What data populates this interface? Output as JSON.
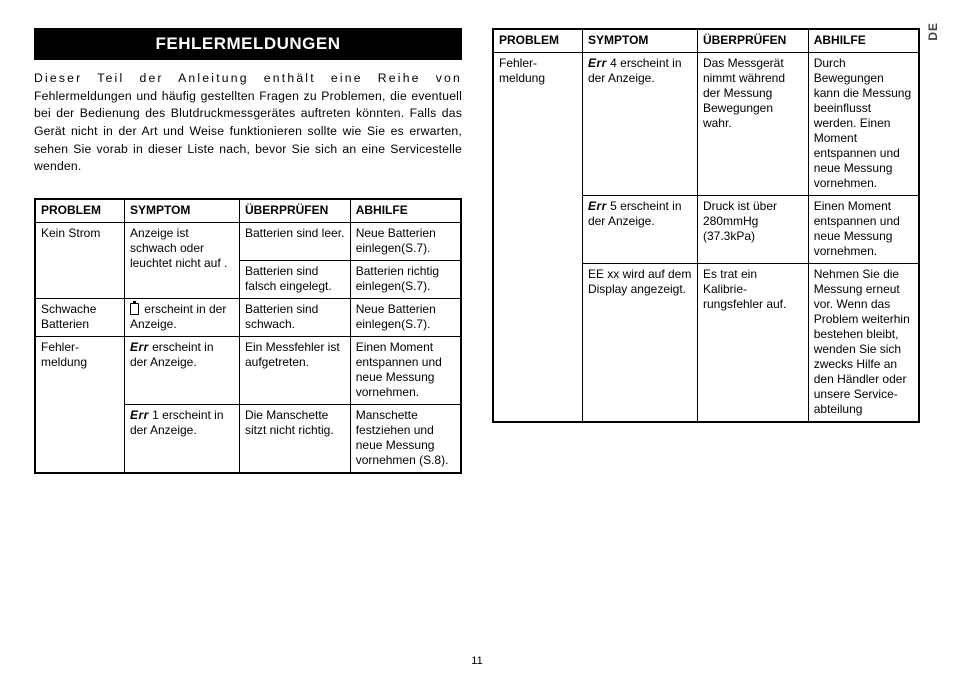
{
  "lang_tab": "DE",
  "page_number": "11",
  "heading": "FEHLERMELDUNGEN",
  "intro_line1": "Dieser Teil der Anleitung enthält eine Reihe von",
  "intro_rest": "Fehlermeldungen und häufig gestellten Fragen zu Problemen, die eventuell bei der Bedienung des Blutdruckmessgerätes auftreten könnten. Falls das Gerät nicht in der Art und Weise funktionieren sollte wie Sie es erwarten, sehen Sie vorab in dieser Liste nach, bevor Sie sich an eine Servicestelle wenden.",
  "headers": {
    "problem": "PROBLEM",
    "symptom": "SYMPTOM",
    "check": "ÜBERPRÜFEN",
    "fix": "ABHILFE"
  },
  "err_label": "Err",
  "left_table": {
    "r1": {
      "problem": "Kein Strom",
      "symptom": "Anzeige ist schwach oder leuchtet nicht auf .",
      "check": "Batterien sind leer.",
      "fix": "Neue Batterien einlegen(S.7).",
      "check2": "Batterien sind falsch eingelegt.",
      "fix2": "Batterien richtig einlegen(S.7)."
    },
    "r2": {
      "problem": "Schwache Batterien",
      "symptom_after": " erscheint in der Anzeige.",
      "check": "Batterien sind schwach.",
      "fix": "Neue Batterien einlegen(S.7)."
    },
    "r3": {
      "problem": "Fehler-\nmeldung",
      "symptom_after": " erscheint in der Anzeige.",
      "check": "Ein Messfehler ist aufgetreten.",
      "fix": "Einen Moment entspannen und neue Messung vornehmen.",
      "symptom2_after": " 1 erscheint in der Anzeige.",
      "check2": "Die Manschette sitzt nicht richtig.",
      "fix2": "Manschette festziehen und neue Messung vornehmen (S.8)."
    }
  },
  "right_table": {
    "r1": {
      "problem": "Fehler-\nmeldung",
      "symptom_after": " 4 erscheint in der Anzeige.",
      "check": "Das Messgerät nimmt während der Messung Bewegungen wahr.",
      "fix": "Durch Bewegungen kann die Messung beeinflusst werden. Einen Moment entspannen und neue Messung vornehmen.",
      "symptom2_after": " 5 erscheint in der Anzeige.",
      "check2": "Druck ist über 280mmHg (37.3kPa)",
      "fix2": "Einen Moment entspannen und neue Messung vornehmen.",
      "symptom3": "EE xx wird auf  dem Display angezeigt.",
      "check3": "Es trat ein Kalibrie-\nrungsfehler auf.",
      "fix3": "Nehmen Sie die Messung erneut vor. Wenn das Problem weiterhin bestehen bleibt, wenden Sie sich zwecks Hilfe an den Händler oder unsere Service-\nabteilung"
    }
  }
}
